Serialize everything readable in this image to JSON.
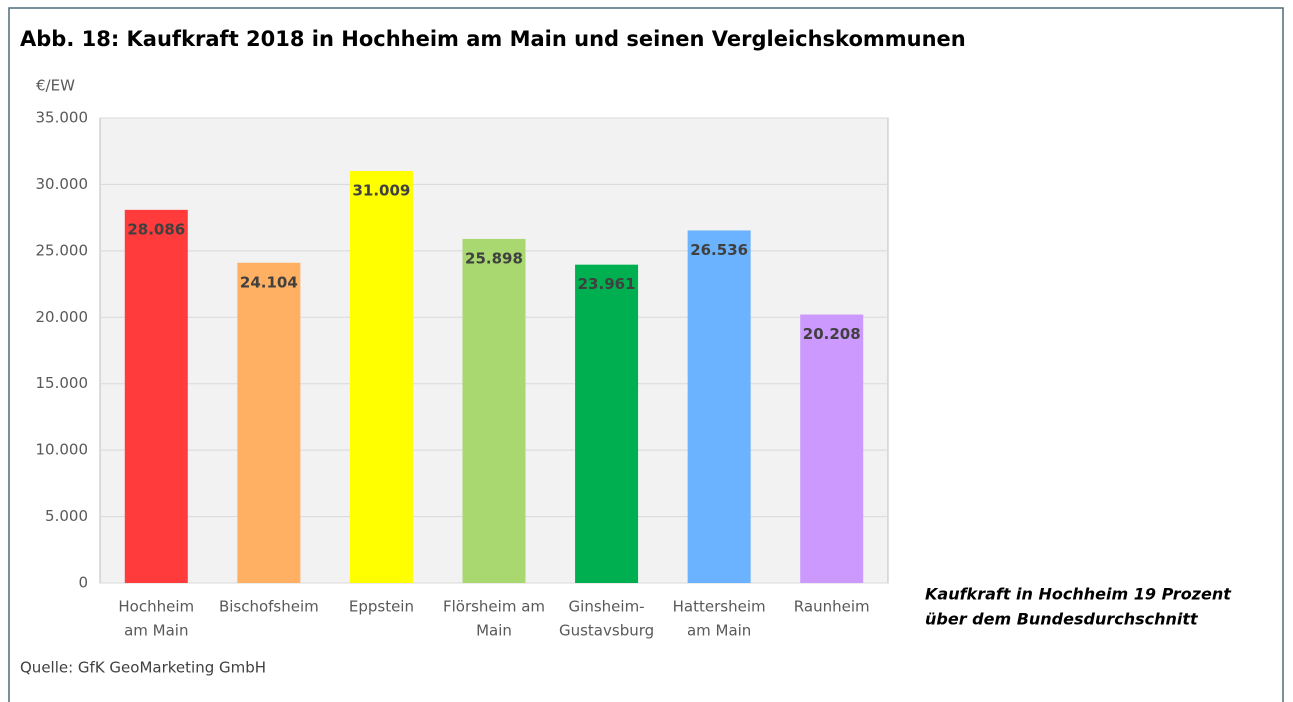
{
  "chart_data": {
    "type": "bar",
    "title": "Abb. 18: Kaufkraft 2018 in Hochheim am Main und seinen Vergleichskommunen",
    "y_label": "€/EW",
    "categories": [
      [
        "Hochheim",
        "am Main"
      ],
      [
        "Bischofsheim"
      ],
      [
        "Eppstein"
      ],
      [
        "Flörsheim am",
        "Main"
      ],
      [
        "Ginsheim-",
        "Gustavsburg"
      ],
      [
        "Hattersheim",
        "am Main"
      ],
      [
        "Raunheim"
      ]
    ],
    "values": [
      28086,
      24104,
      31009,
      25898,
      23961,
      26536,
      20208
    ],
    "value_labels": [
      "28.086",
      "24.104",
      "31.009",
      "25.898",
      "23.961",
      "26.536",
      "20.208"
    ],
    "colors": [
      "#ff3b3b",
      "#ffb062",
      "#ffff00",
      "#a9d871",
      "#00b050",
      "#6cb3ff",
      "#cc99ff"
    ],
    "ylim": [
      0,
      35000
    ],
    "yticks": [
      0,
      {
        "value": 5000,
        "label": "5.000"
      },
      {
        "value": 10000,
        "label": "10.000"
      },
      {
        "value": 15000,
        "label": "15.000"
      },
      {
        "value": 20000,
        "label": "20.000"
      },
      {
        "value": 25000,
        "label": "25.000"
      },
      {
        "value": 30000,
        "label": "30.000"
      },
      {
        "value": 35000,
        "label": "35.000"
      }
    ],
    "grid": true,
    "annotation": [
      "Kaufkraft in Hochheim 19 Prozent",
      "über dem Bundesdurchschnitt"
    ],
    "source": "Quelle: GfK GeoMarketing GmbH"
  }
}
